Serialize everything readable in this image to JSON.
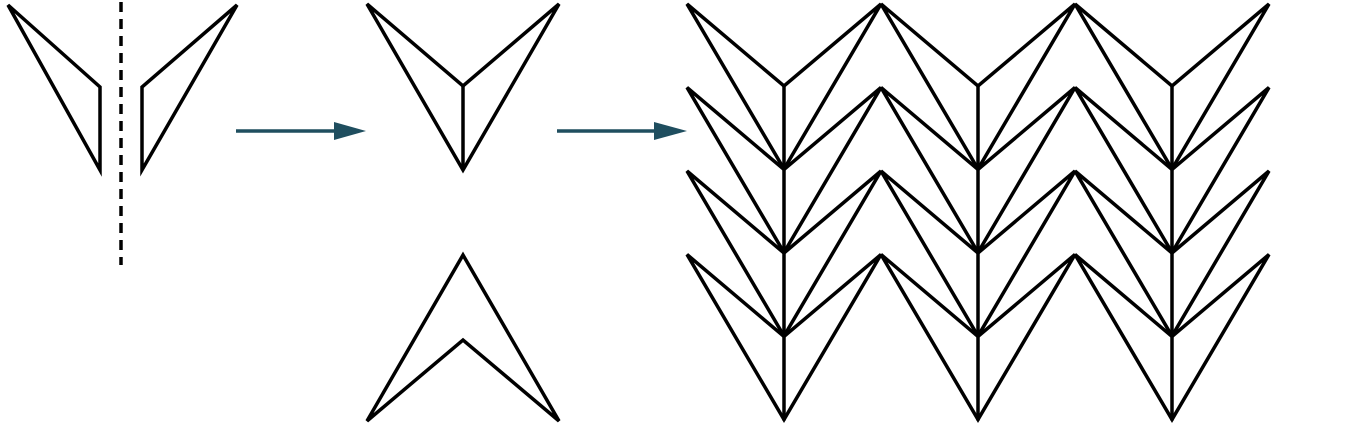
{
  "diagram": {
    "description_text": "",
    "colors": {
      "stroke": "#000000",
      "arrow": "#1f4e5f",
      "background": "#ffffff"
    },
    "panels": [
      {
        "id": "split-kite-halves",
        "icon": "kite-halves-with-mirror-line"
      },
      {
        "id": "assembled-shapes",
        "icon": "chevron-and-dart"
      },
      {
        "id": "tessellation",
        "icon": "chevron-tiling"
      }
    ],
    "arrows": [
      {
        "id": "arrow-1",
        "direction": "right"
      },
      {
        "id": "arrow-2",
        "direction": "right"
      }
    ],
    "tiling": {
      "columns": 3,
      "rows": 4
    }
  }
}
